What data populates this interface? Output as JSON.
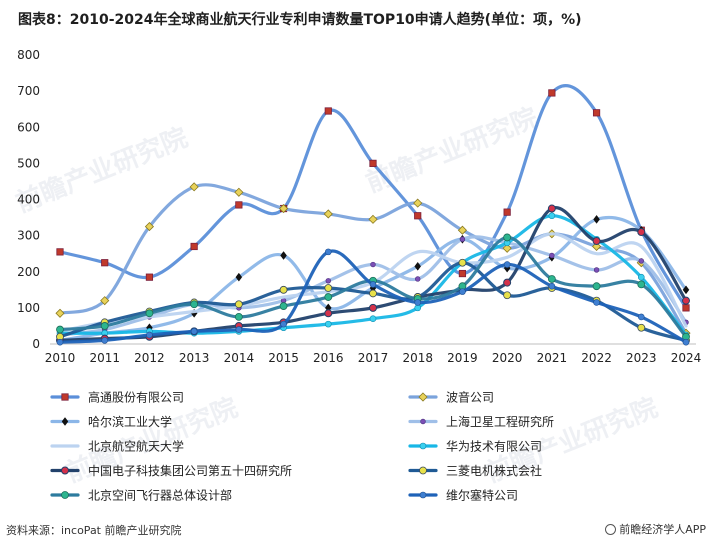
{
  "title": "图表8：2010-2024年全球商业航天行业专利申请数量TOP10申请人趋势(单位：项，%)",
  "source": "资料来源：incoPat 前瞻产业研究院",
  "brand": "前瞻经济学人APP",
  "watermark": "前瞻产业研究院",
  "chart_data": {
    "type": "line",
    "title": "图表8：2010-2024年全球商业航天行业专利申请数量TOP10申请人趋势(单位：项，%)",
    "xlabel": "",
    "ylabel": "",
    "ylim": [
      0,
      800
    ],
    "yticks": [
      0,
      100,
      200,
      300,
      400,
      500,
      600,
      700,
      800
    ],
    "grid": false,
    "legend_position": "bottom",
    "x": [
      "2010",
      "2011",
      "2012",
      "2013",
      "2014",
      "2015",
      "2016",
      "2017",
      "2018",
      "2019",
      "2020",
      "2021",
      "2022",
      "2023",
      "2024"
    ],
    "series": [
      {
        "name": "高通股份有限公司",
        "color": "#5b8fd9",
        "marker": "square-red",
        "values": [
          255,
          225,
          185,
          270,
          385,
          375,
          645,
          500,
          355,
          195,
          365,
          695,
          640,
          315,
          100
        ]
      },
      {
        "name": "波音公司",
        "color": "#7ba3dc",
        "marker": "diamond-yellow",
        "values": [
          85,
          120,
          325,
          435,
          420,
          375,
          360,
          345,
          390,
          315,
          265,
          305,
          270,
          225,
          30
        ]
      },
      {
        "name": "哈尔滨工业大学",
        "color": "#8bb6e8",
        "marker": "diamond-black",
        "values": [
          10,
          30,
          45,
          85,
          185,
          245,
          100,
          155,
          215,
          290,
          210,
          240,
          345,
          315,
          150
        ]
      },
      {
        "name": "上海卫星工程研究所",
        "color": "#9fbfe8",
        "marker": "star-purple",
        "values": [
          25,
          40,
          75,
          110,
          100,
          120,
          175,
          220,
          180,
          290,
          280,
          245,
          205,
          230,
          60
        ]
      },
      {
        "name": "北京航空航天大学",
        "color": "#bcd3f0",
        "marker": "none",
        "values": [
          35,
          60,
          75,
          90,
          105,
          130,
          145,
          170,
          255,
          225,
          240,
          305,
          250,
          270,
          50
        ]
      },
      {
        "name": "华为技术有限公司",
        "color": "#18b7e6",
        "marker": "circle-cyan",
        "values": [
          30,
          30,
          35,
          30,
          35,
          45,
          55,
          70,
          100,
          225,
          280,
          355,
          290,
          185,
          25
        ]
      },
      {
        "name": "中国电子科技集团公司第五十四研究所",
        "color": "#22416b",
        "marker": "circle-red",
        "values": [
          10,
          15,
          20,
          35,
          50,
          60,
          85,
          100,
          130,
          150,
          170,
          375,
          285,
          310,
          120
        ]
      },
      {
        "name": "三菱电机株式会社",
        "color": "#1f5a95",
        "marker": "circle-yellow",
        "values": [
          20,
          60,
          90,
          115,
          110,
          150,
          155,
          140,
          130,
          225,
          135,
          155,
          120,
          45,
          10
        ]
      },
      {
        "name": "北京空间飞行器总体设计部",
        "color": "#2d7b9e",
        "marker": "circle-teal",
        "values": [
          40,
          50,
          85,
          110,
          75,
          105,
          130,
          175,
          125,
          160,
          295,
          180,
          160,
          165,
          20
        ]
      },
      {
        "name": "维尔塞特公司",
        "color": "#1e62b8",
        "marker": "circle-blue",
        "values": [
          5,
          10,
          25,
          35,
          40,
          55,
          255,
          165,
          115,
          145,
          220,
          160,
          115,
          75,
          5
        ]
      }
    ]
  }
}
